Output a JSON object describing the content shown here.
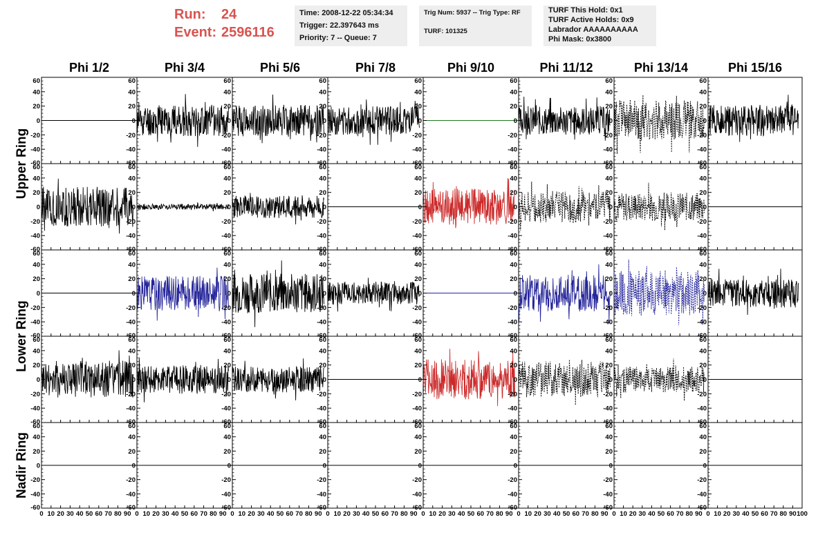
{
  "header": {
    "run_label": "Run:",
    "run_value": "24",
    "event_label": "Event:",
    "event_value": "2596116"
  },
  "info_boxes": {
    "time": {
      "lines": [
        "Time: 2008-12-22 05:34:34",
        "Trigger: 22.397643 ms",
        "Priority: 7 -- Queue: 7"
      ]
    },
    "trig": {
      "line1": "Trig Num: 5937 -- Trig Type: RF",
      "line2": "TURF: 101325"
    },
    "turf": {
      "lines": [
        "TURF This Hold: 0x1",
        "TURF Active Holds: 0x9",
        "Labrador AAAAAAAAAA",
        "Phi Mask: 0x3800"
      ]
    }
  },
  "chart_data": {
    "type": "line",
    "columns": [
      "Phi 1/2",
      "Phi 3/4",
      "Phi 5/6",
      "Phi 7/8",
      "Phi 9/10",
      "Phi 11/12",
      "Phi 13/14",
      "Phi 15/16"
    ],
    "rows": [
      "Upper Ring",
      "Lower Ring",
      "Nadir Ring"
    ],
    "xlim": [
      0,
      100
    ],
    "ylim": [
      -60,
      60
    ],
    "x_ticks": [
      0,
      10,
      20,
      30,
      40,
      50,
      60,
      70,
      80,
      90,
      100
    ],
    "y_ticks": [
      -60,
      -40,
      -20,
      0,
      20,
      40,
      60
    ],
    "colors": {
      "black": "#000000",
      "green": "#1a7a1a",
      "red": "#cc2a2a",
      "blue": "#24249a"
    },
    "panels": [
      [
        {
          "type": "flat",
          "color": "black"
        },
        {
          "type": "noise",
          "color": "black",
          "amp": 22,
          "seed": 11
        },
        {
          "type": "noise",
          "color": "black",
          "amp": 22,
          "seed": 12
        },
        {
          "type": "noise",
          "color": "black",
          "amp": 20,
          "seed": 13
        },
        {
          "type": "flat",
          "color": "green"
        },
        {
          "type": "noise",
          "color": "black",
          "amp": 20,
          "seed": 14
        },
        {
          "type": "noise",
          "color": "black",
          "amp": 28,
          "dashed": true,
          "seed": 15
        },
        {
          "type": "noise",
          "color": "black",
          "amp": 22,
          "seed": 16
        }
      ],
      [
        {
          "type": "noise",
          "color": "black",
          "amp": 28,
          "seed": 21
        },
        {
          "type": "noise",
          "color": "black",
          "amp": 4,
          "seed": 22
        },
        {
          "type": "noise",
          "color": "black",
          "amp": 16,
          "seed": 23
        },
        {
          "type": "flat",
          "color": "black"
        },
        {
          "type": "noise",
          "color": "red",
          "amp": 25,
          "seed": 24
        },
        {
          "type": "noise",
          "color": "black",
          "amp": 22,
          "dashed": true,
          "seed": 25
        },
        {
          "type": "noise",
          "color": "black",
          "amp": 20,
          "dashed": true,
          "seed": 26
        },
        {
          "type": "flat",
          "color": "black"
        }
      ],
      [
        {
          "type": "flat",
          "color": "black"
        },
        {
          "type": "noise",
          "color": "blue",
          "amp": 24,
          "seed": 31
        },
        {
          "type": "noise",
          "color": "black",
          "amp": 28,
          "seed": 32
        },
        {
          "type": "noise",
          "color": "black",
          "amp": 16,
          "seed": 33
        },
        {
          "type": "flat",
          "color": "blue"
        },
        {
          "type": "noise",
          "color": "blue",
          "amp": 26,
          "seed": 34
        },
        {
          "type": "noise",
          "color": "blue",
          "amp": 32,
          "dashed": true,
          "seed": 35
        },
        {
          "type": "noise",
          "color": "black",
          "amp": 20,
          "seed": 36
        }
      ],
      [
        {
          "type": "noise",
          "color": "black",
          "amp": 26,
          "seed": 41
        },
        {
          "type": "noise",
          "color": "black",
          "amp": 20,
          "seed": 42
        },
        {
          "type": "noise",
          "color": "black",
          "amp": 18,
          "seed": 43
        },
        {
          "type": "flat",
          "color": "black"
        },
        {
          "type": "noise",
          "color": "red",
          "amp": 28,
          "seed": 44
        },
        {
          "type": "noise",
          "color": "black",
          "amp": 25,
          "dashed": true,
          "seed": 45
        },
        {
          "type": "noise",
          "color": "black",
          "amp": 18,
          "dashed": true,
          "seed": 46
        },
        {
          "type": "flat",
          "color": "black"
        }
      ],
      [
        {
          "type": "flat",
          "color": "black"
        },
        {
          "type": "flat",
          "color": "black"
        },
        {
          "type": "flat",
          "color": "black"
        },
        {
          "type": "flat",
          "color": "black"
        },
        {
          "type": "flat",
          "color": "black"
        },
        {
          "type": "flat",
          "color": "black"
        },
        {
          "type": "flat",
          "color": "black"
        },
        {
          "type": "flat",
          "color": "black"
        }
      ]
    ]
  }
}
